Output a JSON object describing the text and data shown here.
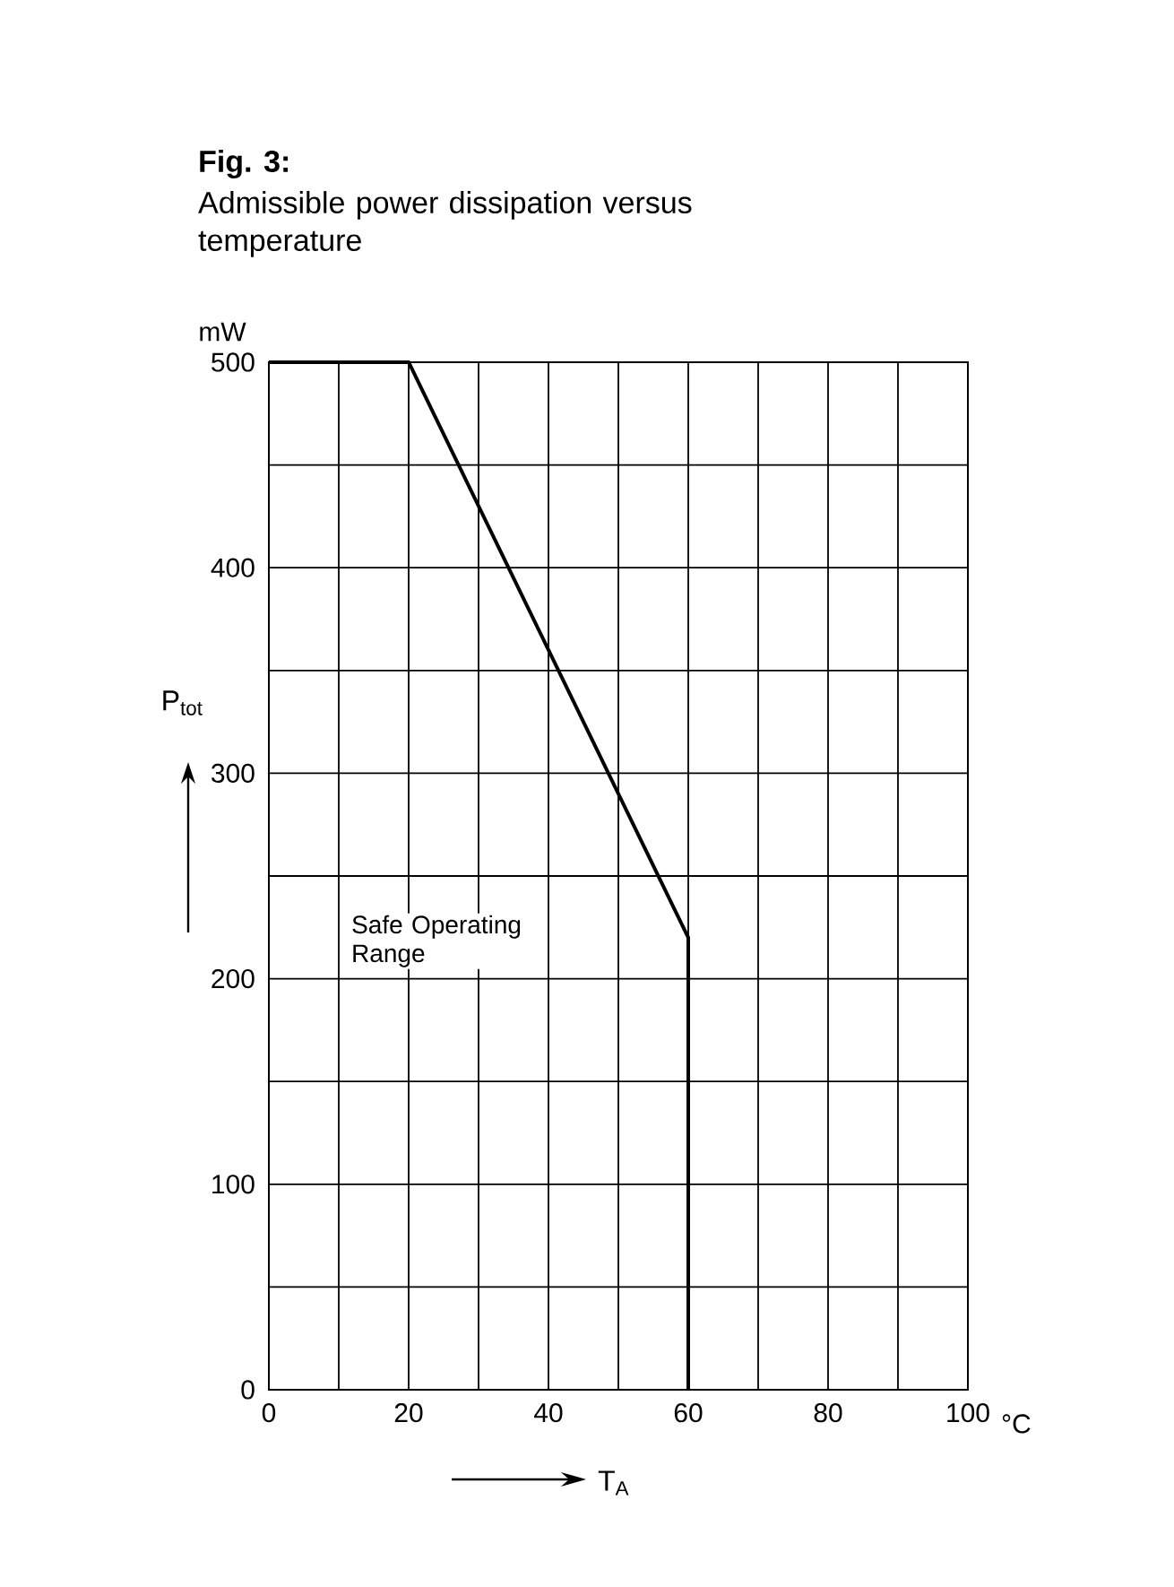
{
  "chart_data": {
    "type": "line",
    "title": "Fig. 3:",
    "subtitle": "Admissible power dissipation versus temperature",
    "xlabel": "T$_{A}$",
    "ylabel": "P$_{tot}$",
    "annotations": [
      "mW",
      "°C",
      "Safe Operating Range"
    ],
    "x": [
      0,
      20,
      60,
      60
    ],
    "values": [
      500,
      500,
      220,
      0
    ],
    "color": "#000000",
    "marker": "none",
    "line_style": "solid",
    "xlim": [
      0,
      100
    ],
    "ylim": [
      0,
      500
    ],
    "xticks": [
      0,
      {
        "value": 10,
        "label": null
      },
      20,
      {
        "value": 30,
        "label": null
      },
      40,
      {
        "value": 50,
        "label": null
      },
      60,
      {
        "value": 70,
        "label": null
      },
      80,
      {
        "value": 90,
        "label": null
      },
      100
    ],
    "yticks": [
      0,
      {
        "value": 50,
        "label": null
      },
      100,
      {
        "value": 150,
        "label": null
      },
      200,
      {
        "value": 250,
        "label": null
      },
      300,
      {
        "value": 350,
        "label": null
      },
      400,
      {
        "value": 450,
        "label": null
      },
      500
    ],
    "grid": true
  }
}
